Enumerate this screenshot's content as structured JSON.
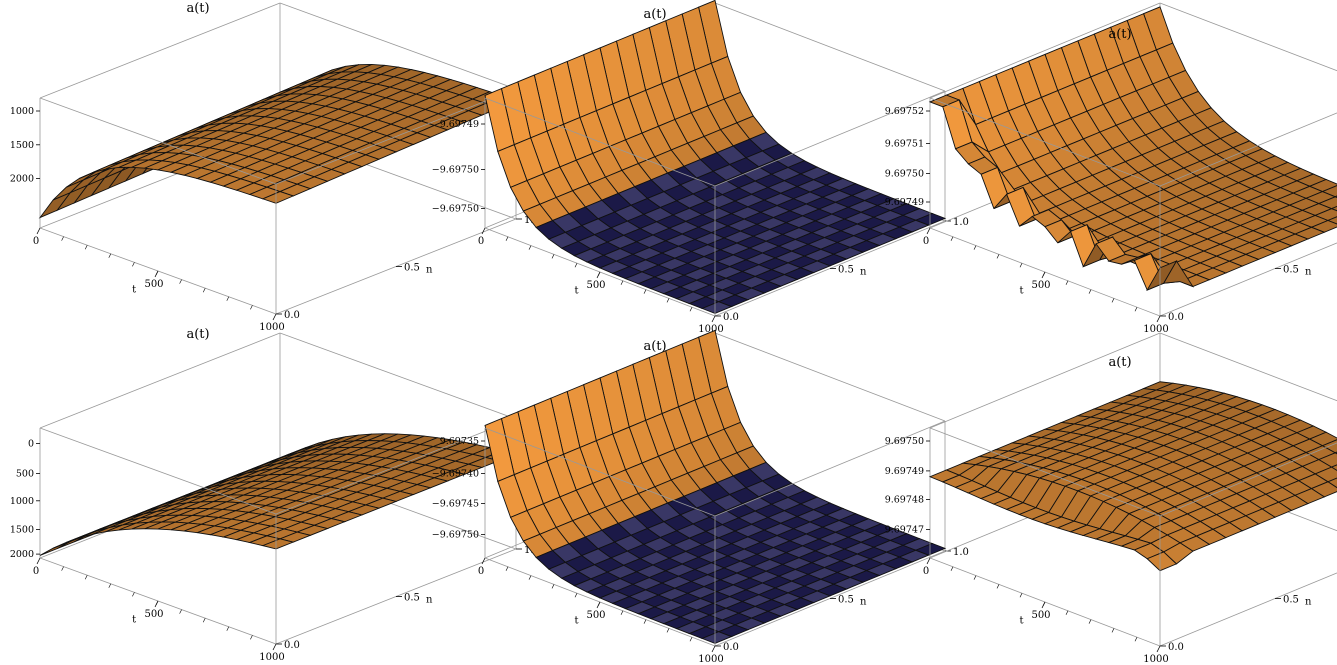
{
  "chart_data": [
    {
      "type": "surface",
      "title": "a(t)",
      "xlabel": "t",
      "ylabel": "n",
      "zlabel": "",
      "xlim": [
        0,
        1000
      ],
      "ylim": [
        0,
        1
      ],
      "zlim": [
        600,
        2000
      ],
      "x_ticks": [
        "0",
        "500",
        "1000"
      ],
      "y_ticks": [
        "0.0",
        "0.5",
        "1.0"
      ],
      "z_ticks": [
        "1000",
        "1500",
        "2000"
      ],
      "surface_color": "#F39A3E",
      "surface_description": "rising-saturating surface (logistic-like in t)"
    },
    {
      "type": "surface",
      "title": "a(t)",
      "xlabel": "t",
      "ylabel": "n",
      "zlabel": "",
      "xlim": [
        0,
        1000
      ],
      "ylim": [
        0,
        1
      ],
      "x_ticks": [
        "0",
        "500",
        "1000"
      ],
      "y_ticks": [
        "0.0",
        "0.5",
        "1.0"
      ],
      "z_ticks": [
        "9.69749",
        "−9.69750",
        "−9.69750"
      ],
      "surface_color": "#F39A3E",
      "surface_underside_color": "#1B1947",
      "surface_description": "high near t=0 then decays quickly to a flat floor"
    },
    {
      "type": "surface",
      "title": "a(t)",
      "xlabel": "t",
      "ylabel": "n",
      "zlabel": "",
      "xlim": [
        0,
        1000
      ],
      "ylim": [
        0,
        1
      ],
      "x_ticks": [
        "0",
        "500",
        "1000"
      ],
      "y_ticks": [
        "0.0",
        "0.5",
        "1.0"
      ],
      "z_ticks": [
        "9.69752",
        "9.69751",
        "9.69750",
        "9.69749"
      ],
      "surface_color": "#F39A3E",
      "surface_description": "decaying surface with spikes near n=0"
    },
    {
      "type": "surface",
      "title": "a(t)",
      "xlabel": "t",
      "ylabel": "n",
      "zlabel": "",
      "xlim": [
        0,
        1000
      ],
      "ylim": [
        0,
        1
      ],
      "zlim": [
        0,
        2000
      ],
      "x_ticks": [
        "0",
        "500",
        "1000"
      ],
      "y_ticks": [
        "0.0",
        "0.5",
        "1.0"
      ],
      "z_ticks": [
        "0",
        "500",
        "1000",
        "1500",
        "2000"
      ],
      "surface_color": "#F39A3E",
      "surface_description": "gently rising surface from 0"
    },
    {
      "type": "surface",
      "title": "a(t)",
      "xlabel": "t",
      "ylabel": "n",
      "zlabel": "",
      "xlim": [
        0,
        1000
      ],
      "ylim": [
        0,
        1
      ],
      "x_ticks": [
        "0",
        "500",
        "1000"
      ],
      "y_ticks": [
        "0.0",
        "0.5",
        "1.0"
      ],
      "z_ticks": [
        "9.69735",
        "−9.69740",
        "−9.69745",
        "−9.69750"
      ],
      "surface_color": "#F39A3E",
      "surface_underside_color": "#1B1947",
      "surface_description": "high near t=0 then decays quickly to a flat floor"
    },
    {
      "type": "surface",
      "title": "a(t)",
      "xlabel": "t",
      "ylabel": "n",
      "zlabel": "",
      "xlim": [
        0,
        1000
      ],
      "ylim": [
        0,
        1
      ],
      "x_ticks": [
        "0",
        "500",
        "1000"
      ],
      "y_ticks": [
        "0.0",
        "0.5",
        "1.0"
      ],
      "z_ticks": [
        "9.69750",
        "9.69749",
        "9.69748",
        "9.69747"
      ],
      "surface_color": "#F39A3E",
      "surface_description": "plateau surface with spikes near edges"
    }
  ]
}
